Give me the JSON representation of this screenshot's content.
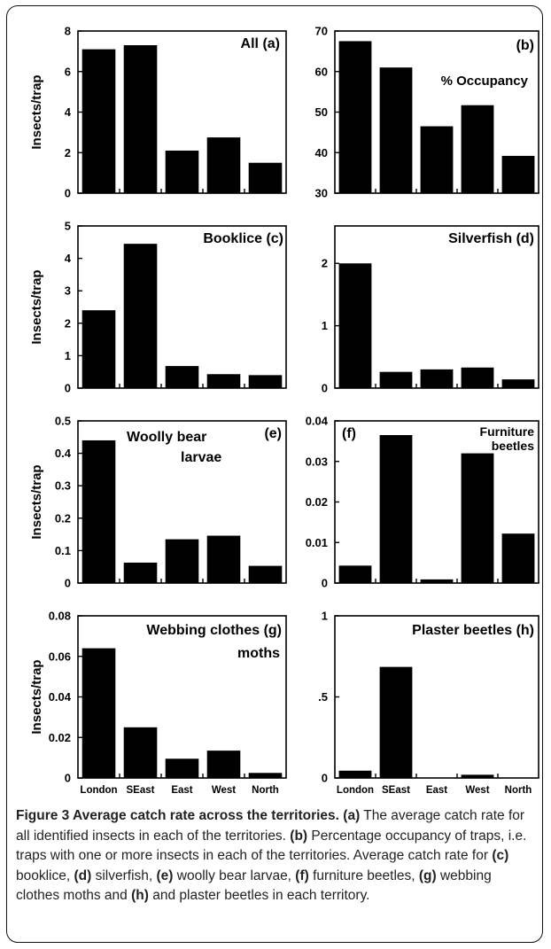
{
  "chart_data": [
    {
      "id": "a",
      "type": "bar",
      "panel_label": "All (a)",
      "ylabel": "Insects/trap",
      "categories": [
        "London",
        "SEast",
        "East",
        "West",
        "North"
      ],
      "values": [
        7.1,
        7.3,
        2.1,
        2.75,
        1.5
      ],
      "ylim": [
        0,
        8
      ],
      "yticks": [
        "0",
        "2",
        "4",
        "6",
        "8"
      ]
    },
    {
      "id": "b",
      "type": "bar",
      "panel_label": "(b)",
      "annotation": "% Occupancy",
      "ylabel": "",
      "categories": [
        "London",
        "SEast",
        "East",
        "West",
        "North"
      ],
      "values": [
        67.5,
        61,
        46.5,
        51.7,
        39.2
      ],
      "ylim": [
        30,
        70
      ],
      "yticks": [
        "30",
        "40",
        "50",
        "60",
        "70"
      ]
    },
    {
      "id": "c",
      "type": "bar",
      "panel_label": "Booklice (c)",
      "ylabel": "Insects/trap",
      "categories": [
        "London",
        "SEast",
        "East",
        "West",
        "North"
      ],
      "values": [
        2.4,
        4.45,
        0.68,
        0.43,
        0.4
      ],
      "ylim": [
        0,
        5
      ],
      "yticks": [
        "0",
        "1",
        "2",
        "3",
        "4",
        "5"
      ]
    },
    {
      "id": "d",
      "type": "bar",
      "panel_label": "Silverfish (d)",
      "ylabel": "",
      "categories": [
        "London",
        "SEast",
        "East",
        "West",
        "North"
      ],
      "values": [
        2.0,
        0.26,
        0.3,
        0.33,
        0.14
      ],
      "ylim": [
        0,
        2.6
      ],
      "yticks": [
        "0",
        "1",
        "2"
      ]
    },
    {
      "id": "e",
      "type": "bar",
      "panel_label": "(e)",
      "annotation": [
        "Woolly bear",
        "larvae"
      ],
      "ylabel": "Insects/trap",
      "categories": [
        "London",
        "SEast",
        "East",
        "West",
        "North"
      ],
      "values": [
        0.44,
        0.063,
        0.135,
        0.146,
        0.053
      ],
      "ylim": [
        0,
        0.5
      ],
      "yticks": [
        "0",
        "0.1",
        "0.2",
        "0.3",
        "0.4",
        "0.5"
      ]
    },
    {
      "id": "f",
      "type": "bar",
      "panel_label": "(f)",
      "annotation": [
        "Furniture",
        "beetles"
      ],
      "ylabel": "",
      "categories": [
        "London",
        "SEast",
        "East",
        "West",
        "North"
      ],
      "values": [
        0.0043,
        0.0365,
        0.0009,
        0.032,
        0.0122
      ],
      "ylim": [
        0,
        0.04
      ],
      "yticks": [
        "0",
        "0.01",
        "0.02",
        "0.03",
        "0.04"
      ]
    },
    {
      "id": "g",
      "type": "bar",
      "panel_label": "Webbing clothes (g)",
      "annotation": "moths",
      "ylabel": "Insects/trap",
      "categories": [
        "London",
        "SEast",
        "East",
        "West",
        "North"
      ],
      "values": [
        0.064,
        0.025,
        0.0095,
        0.0135,
        0.0025
      ],
      "ylim": [
        0,
        0.08
      ],
      "yticks": [
        "0",
        "0.02",
        "0.04",
        "0.06",
        "0.08"
      ],
      "xticks": [
        "London",
        "SEast",
        "East",
        "West",
        "North"
      ]
    },
    {
      "id": "h",
      "type": "bar",
      "panel_label": "Plaster beetles (h)",
      "ylabel": "",
      "categories": [
        "London",
        "SEast",
        "East",
        "West",
        "North"
      ],
      "values": [
        0.045,
        0.685,
        0,
        0.02,
        0
      ],
      "ylim": [
        0,
        1
      ],
      "yticks": [
        "0",
        ".5",
        "1"
      ],
      "xticks": [
        "London",
        "SEast",
        "East",
        "West",
        "North"
      ]
    }
  ],
  "caption": {
    "title": "Figure 3 Average catch rate across the territories.",
    "segments": [
      {
        "b": "(a)",
        "t": " The average catch rate for all identified insects in each of the territories. "
      },
      {
        "b": "(b)",
        "t": " Percentage occupancy of traps, i.e. traps with one or more insects in each of the territories. Average catch rate for "
      },
      {
        "b": "(c)",
        "t": " booklice, "
      },
      {
        "b": "(d)",
        "t": " silverfish, "
      },
      {
        "b": "(e)",
        "t": " woolly bear larvae, "
      },
      {
        "b": "(f)",
        "t": " furniture beetles, "
      },
      {
        "b": "(g)",
        "t": " webbing clothes moths and "
      },
      {
        "b": "(h)",
        "t": " and plaster beetles in each territory."
      }
    ]
  }
}
